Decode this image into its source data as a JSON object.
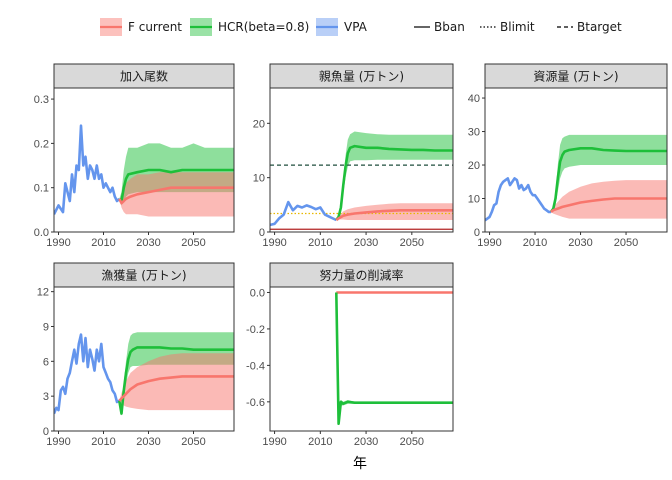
{
  "chart_data": {
    "type": "line",
    "xlabel": "年",
    "colors": {
      "F current": "#F8766D",
      "HCR(beta=0.8)": "#1EBF3A",
      "VPA": "#6495ED",
      "Btarget": "#1F4E3D",
      "Blimit": "#E8B800",
      "Bban": "#B22222"
    },
    "legend": {
      "placement": "top",
      "scenario_title": "",
      "line_title": "",
      "scenarios": [
        "F current",
        "HCR(beta=0.8)",
        "VPA"
      ],
      "ref_lines": [
        {
          "label": "Bban",
          "dash": "solid"
        },
        {
          "label": "Blimit",
          "dash": "dotted"
        },
        {
          "label": "Btarget",
          "dash": "dashed"
        }
      ]
    },
    "xlim": [
      1988,
      2068
    ],
    "xticks": [
      "1990",
      "2010",
      "2030",
      "2050"
    ],
    "panels": [
      {
        "title": "加入尾数",
        "ylim": [
          0,
          0.325
        ],
        "yticks": [
          "0.0",
          "0.1",
          "0.2",
          "0.3"
        ],
        "yvals": [
          0,
          0.1,
          0.2,
          0.3
        ],
        "ref_lines": [],
        "series": [
          {
            "name": "VPA",
            "x": [
              1988,
              1990,
              1992,
              1993,
              1995,
              1996,
              1997,
              1998,
              1999,
              2000,
              2001,
              2002,
              2003,
              2004,
              2005,
              2006,
              2007,
              2008,
              2009,
              2010,
              2011,
              2012,
              2013,
              2014,
              2015,
              2016,
              2017
            ],
            "y": [
              0.04,
              0.06,
              0.045,
              0.11,
              0.07,
              0.13,
              0.09,
              0.15,
              0.14,
              0.24,
              0.15,
              0.17,
              0.12,
              0.15,
              0.14,
              0.12,
              0.15,
              0.12,
              0.13,
              0.1,
              0.11,
              0.1,
              0.09,
              0.1,
              0.08,
              0.07,
              0.075
            ]
          },
          {
            "name": "HCR(beta=0.8)",
            "x": [
              2017,
              2018,
              2019,
              2020,
              2021,
              2025,
              2030,
              2035,
              2040,
              2045,
              2050,
              2055,
              2060,
              2065,
              2068
            ],
            "y": [
              0.075,
              0.07,
              0.1,
              0.12,
              0.13,
              0.135,
              0.14,
              0.14,
              0.135,
              0.14,
              0.14,
              0.14,
              0.14,
              0.14,
              0.14
            ],
            "lo": [
              0.075,
              0.06,
              0.07,
              0.08,
              0.085,
              0.09,
              0.09,
              0.09,
              0.09,
              0.09,
              0.09,
              0.09,
              0.09,
              0.09,
              0.09
            ],
            "hi": [
              0.075,
              0.09,
              0.14,
              0.17,
              0.19,
              0.19,
              0.2,
              0.2,
              0.19,
              0.19,
              0.2,
              0.19,
              0.19,
              0.19,
              0.19
            ]
          },
          {
            "name": "F current",
            "x": [
              2017,
              2018,
              2019,
              2020,
              2022,
              2025,
              2030,
              2035,
              2040,
              2045,
              2050,
              2055,
              2060,
              2065,
              2068
            ],
            "y": [
              0.075,
              0.065,
              0.07,
              0.075,
              0.08,
              0.085,
              0.09,
              0.095,
              0.1,
              0.1,
              0.1,
              0.1,
              0.1,
              0.1,
              0.1
            ],
            "lo": [
              0.075,
              0.055,
              0.045,
              0.04,
              0.04,
              0.04,
              0.035,
              0.035,
              0.035,
              0.035,
              0.035,
              0.035,
              0.035,
              0.035,
              0.035
            ],
            "hi": [
              0.075,
              0.08,
              0.1,
              0.11,
              0.12,
              0.13,
              0.13,
              0.135,
              0.135,
              0.135,
              0.135,
              0.135,
              0.135,
              0.135,
              0.135
            ]
          }
        ]
      },
      {
        "title": "親魚量 (万トン)",
        "ylim": [
          0,
          26.5
        ],
        "yticks": [
          "0",
          "10",
          "20"
        ],
        "yvals": [
          0,
          10,
          20
        ],
        "ref_lines": [
          {
            "label": "Btarget",
            "y": 12.3
          },
          {
            "label": "Blimit",
            "y": 3.4
          },
          {
            "label": "Bban",
            "y": 0.5
          }
        ],
        "series": [
          {
            "name": "VPA",
            "x": [
              1988,
              1990,
              1992,
              1994,
              1996,
              1998,
              2000,
              2002,
              2004,
              2006,
              2008,
              2010,
              2012,
              2014,
              2016,
              2017
            ],
            "y": [
              1.3,
              1.5,
              2.5,
              3.2,
              5.5,
              4.0,
              4.8,
              4.5,
              4.9,
              4.6,
              4.2,
              4.5,
              3.2,
              2.8,
              2.4,
              2.2
            ]
          },
          {
            "name": "HCR(beta=0.8)",
            "x": [
              2017,
              2018,
              2019,
              2020,
              2021,
              2022,
              2023,
              2025,
              2030,
              2035,
              2040,
              2045,
              2050,
              2055,
              2060,
              2065,
              2068
            ],
            "y": [
              2.2,
              2.8,
              4.5,
              8.5,
              12,
              14.5,
              15.5,
              15.8,
              15.5,
              15.5,
              15.3,
              15.2,
              15.1,
              15.1,
              15.0,
              15.0,
              15.0
            ],
            "lo": [
              2.2,
              2.6,
              3.8,
              7.0,
              10,
              12,
              13,
              13.2,
              13.2,
              13.3,
              13.3,
              13.3,
              13.3,
              13.3,
              13.3,
              13.3,
              13.3
            ],
            "hi": [
              2.2,
              3.0,
              5.2,
              10,
              14,
              17,
              18,
              18.5,
              18.2,
              18.0,
              17.9,
              17.9,
              17.9,
              17.9,
              17.9,
              17.9,
              17.9
            ]
          },
          {
            "name": "F current",
            "x": [
              2017,
              2018,
              2020,
              2022,
              2025,
              2030,
              2035,
              2040,
              2045,
              2050,
              2055,
              2060,
              2065,
              2068
            ],
            "y": [
              2.2,
              2.5,
              3.0,
              3.2,
              3.4,
              3.6,
              3.8,
              3.9,
              4.0,
              4.0,
              4.0,
              4.0,
              4.0,
              4.0
            ],
            "lo": [
              2.2,
              2.3,
              2.3,
              2.2,
              2.2,
              2.2,
              2.2,
              2.2,
              2.2,
              2.2,
              2.2,
              2.2,
              2.2,
              2.2
            ],
            "hi": [
              2.2,
              2.8,
              3.8,
              4.2,
              4.5,
              4.8,
              5.0,
              5.2,
              5.3,
              5.3,
              5.3,
              5.3,
              5.3,
              5.3
            ]
          }
        ]
      },
      {
        "title": "資源量 (万トン)",
        "ylim": [
          0,
          43
        ],
        "yticks": [
          "0",
          "10",
          "20",
          "30",
          "40"
        ],
        "yvals": [
          0,
          10,
          20,
          30,
          40
        ],
        "ref_lines": [],
        "series": [
          {
            "name": "VPA",
            "x": [
              1988,
              1990,
              1991,
              1992,
              1993,
              1994,
              1995,
              1996,
              1997,
              1998,
              1999,
              2000,
              2001,
              2002,
              2003,
              2004,
              2005,
              2006,
              2007,
              2008,
              2009,
              2010,
              2011,
              2012,
              2013,
              2014,
              2015,
              2016,
              2017
            ],
            "y": [
              3.5,
              4.5,
              6,
              8,
              8.5,
              12,
              14,
              15,
              15.5,
              16,
              14,
              15,
              16,
              15.5,
              13,
              14,
              12.5,
              13,
              14,
              12,
              11,
              11,
              10,
              9,
              8,
              7,
              6.5,
              6,
              6
            ]
          },
          {
            "name": "HCR(beta=0.8)",
            "x": [
              2017,
              2018,
              2019,
              2020,
              2021,
              2022,
              2023,
              2025,
              2030,
              2035,
              2040,
              2045,
              2050,
              2055,
              2060,
              2065,
              2068
            ],
            "y": [
              6,
              7,
              10,
              16,
              21,
              23,
              24,
              24.5,
              25,
              25,
              24.5,
              24.3,
              24.2,
              24.2,
              24.2,
              24.2,
              24.2
            ],
            "lo": [
              6,
              6.5,
              8,
              12,
              16,
              18,
              19,
              19.5,
              20,
              20,
              20,
              20,
              20,
              20,
              20,
              20,
              20
            ],
            "hi": [
              6,
              8,
              12,
              20,
              26,
              28,
              28.5,
              29,
              29,
              29,
              29,
              29,
              29,
              29,
              29,
              29,
              29
            ]
          },
          {
            "name": "F current",
            "x": [
              2017,
              2018,
              2020,
              2022,
              2025,
              2030,
              2035,
              2040,
              2045,
              2050,
              2055,
              2060,
              2065,
              2068
            ],
            "y": [
              6,
              6.5,
              7,
              7.5,
              8,
              8.8,
              9.3,
              9.7,
              10,
              10,
              10,
              10,
              10,
              10
            ],
            "lo": [
              6,
              5.5,
              5,
              4.5,
              4,
              4,
              4,
              4,
              4,
              4,
              4,
              4,
              4,
              4
            ],
            "hi": [
              6,
              7.5,
              9,
              10.5,
              12,
              13.5,
              14.5,
              15,
              15.3,
              15.5,
              15.5,
              15.5,
              15.5,
              15.5
            ]
          }
        ]
      },
      {
        "title": "漁獲量 (万トン)",
        "ylim": [
          0,
          12.4
        ],
        "yticks": [
          "0",
          "3",
          "6",
          "9",
          "12"
        ],
        "yvals": [
          0,
          3,
          6,
          9,
          12
        ],
        "ref_lines": [],
        "series": [
          {
            "name": "VPA",
            "x": [
              1988,
              1989,
              1990,
              1991,
              1992,
              1993,
              1994,
              1995,
              1996,
              1997,
              1998,
              1999,
              2000,
              2001,
              2002,
              2003,
              2004,
              2005,
              2006,
              2007,
              2008,
              2009,
              2010,
              2011,
              2012,
              2013,
              2014,
              2015,
              2016,
              2017
            ],
            "y": [
              1.5,
              2,
              1.8,
              3.5,
              3.8,
              3.2,
              4.5,
              5,
              6,
              7,
              5.8,
              7.5,
              8.3,
              6,
              8,
              5.5,
              7,
              6.2,
              5.2,
              7,
              6,
              7.5,
              5.5,
              5,
              4.5,
              4.2,
              3.5,
              3.2,
              2.5,
              2.6
            ]
          },
          {
            "name": "HCR(beta=0.8)",
            "x": [
              2017,
              2018,
              2019,
              2020,
              2021,
              2022,
              2023,
              2025,
              2030,
              2035,
              2040,
              2045,
              2050,
              2055,
              2060,
              2065,
              2068
            ],
            "y": [
              2.6,
              1.5,
              3.5,
              5,
              6.2,
              6.8,
              7,
              7.2,
              7.2,
              7.2,
              7.1,
              7.1,
              7.0,
              7.0,
              7.0,
              7.0,
              7.0
            ],
            "lo": [
              2.6,
              1.3,
              2.8,
              4,
              5,
              5.5,
              5.6,
              5.6,
              5.7,
              5.7,
              5.7,
              5.7,
              5.7,
              5.7,
              5.7,
              5.7,
              5.7
            ],
            "hi": [
              2.6,
              1.7,
              4.2,
              6,
              7.5,
              8.2,
              8.4,
              8.5,
              8.5,
              8.5,
              8.5,
              8.5,
              8.5,
              8.5,
              8.5,
              8.5,
              8.5
            ]
          },
          {
            "name": "F current",
            "x": [
              2017,
              2018,
              2020,
              2022,
              2025,
              2030,
              2035,
              2040,
              2045,
              2050,
              2055,
              2060,
              2065,
              2068
            ],
            "y": [
              2.6,
              2.8,
              3.2,
              3.6,
              4.0,
              4.3,
              4.5,
              4.6,
              4.7,
              4.7,
              4.7,
              4.7,
              4.7,
              4.7
            ],
            "lo": [
              2.6,
              2.3,
              2.1,
              2.0,
              1.9,
              1.8,
              1.8,
              1.8,
              1.8,
              1.8,
              1.8,
              1.8,
              1.8,
              1.8
            ],
            "hi": [
              2.6,
              3.3,
              4.3,
              5.0,
              5.5,
              6.0,
              6.4,
              6.6,
              6.7,
              6.7,
              6.7,
              6.7,
              6.7,
              6.7
            ]
          }
        ]
      },
      {
        "title": "努力量の削減率",
        "ylim": [
          -0.76,
          0.03
        ],
        "yticks": [
          "0.0",
          "-0.2",
          "-0.4",
          "-0.6"
        ],
        "yvals": [
          0,
          -0.2,
          -0.4,
          -0.6
        ],
        "ref_lines": [],
        "series": [
          {
            "name": "F current",
            "x": [
              2017,
              2068
            ],
            "y": [
              0,
              0
            ]
          },
          {
            "name": "HCR(beta=0.8)",
            "x": [
              2017,
              2018,
              2019,
              2020,
              2022,
              2025,
              2030,
              2040,
              2050,
              2060,
              2068
            ],
            "y": [
              0,
              -0.72,
              -0.6,
              -0.61,
              -0.6,
              -0.605,
              -0.605,
              -0.605,
              -0.605,
              -0.605,
              -0.605
            ],
            "lo": [
              0,
              -0.73,
              -0.62,
              -0.62,
              -0.61,
              -0.61,
              -0.61,
              -0.61,
              -0.61,
              -0.61,
              -0.61
            ],
            "hi": [
              0,
              -0.7,
              -0.59,
              -0.6,
              -0.59,
              -0.6,
              -0.6,
              -0.6,
              -0.6,
              -0.6,
              -0.6
            ]
          }
        ]
      }
    ]
  }
}
